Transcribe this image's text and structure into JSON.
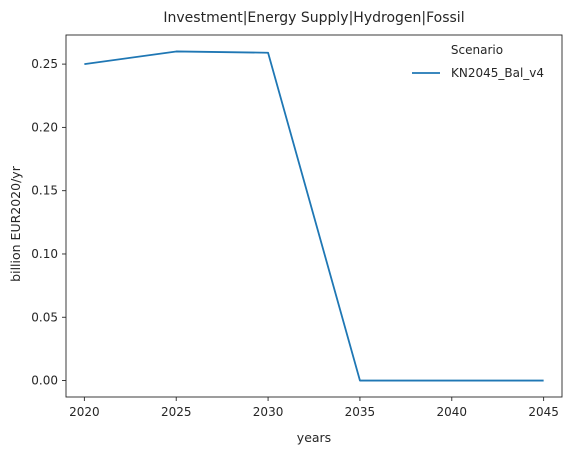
{
  "chart_data": {
    "type": "line",
    "title": "Investment|Energy Supply|Hydrogen|Fossil",
    "xlabel": "years",
    "ylabel": "billion EUR2020/yr",
    "x": [
      2020,
      2025,
      2030,
      2035,
      2040,
      2045
    ],
    "series": [
      {
        "name": "KN2045_Bal_v4",
        "color": "#1f77b4",
        "values": [
          0.25,
          0.26,
          0.259,
          0.0,
          0.0,
          0.0
        ]
      }
    ],
    "xticks": [
      "2020",
      "2025",
      "2030",
      "2035",
      "2040",
      "2045"
    ],
    "yticks": [
      "0.00",
      "0.05",
      "0.10",
      "0.15",
      "0.20",
      "0.25"
    ],
    "xlim": [
      2019,
      2046
    ],
    "ylim": [
      -0.013,
      0.273
    ],
    "grid": false,
    "legend": {
      "title": "Scenario",
      "placement": "top-right"
    }
  }
}
